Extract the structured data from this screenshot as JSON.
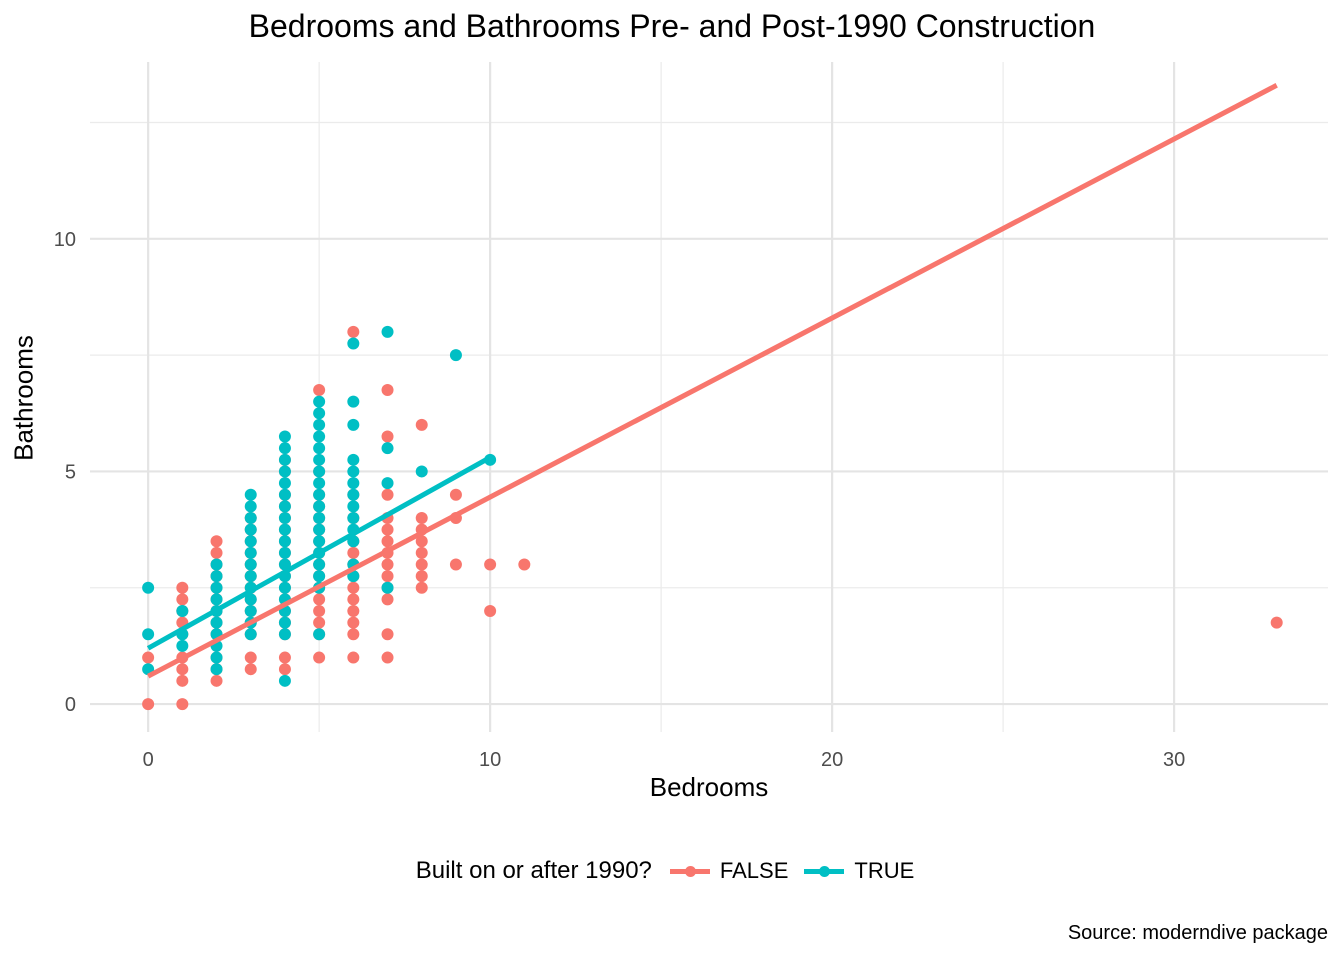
{
  "chart_data": {
    "type": "scatter",
    "title": "Bedrooms and Bathrooms Pre- and Post-1990 Construction",
    "xlabel": "Bedrooms",
    "ylabel": "Bathrooms",
    "caption": "Source: moderndive package",
    "xlim": [
      -1.7,
      34.5
    ],
    "ylim": [
      -0.6,
      13.8
    ],
    "x_ticks": [
      0,
      10,
      20,
      30
    ],
    "y_ticks": [
      0,
      5,
      10
    ],
    "grid": true,
    "legend": {
      "title": "Built on or after 1990?",
      "position": "bottom",
      "entries": [
        "FALSE",
        "TRUE"
      ]
    },
    "colors": {
      "FALSE": "#F8766D",
      "TRUE": "#00BFC4"
    },
    "series": [
      {
        "name": "FALSE",
        "color": "#F8766D",
        "points": [
          [
            0,
            0
          ],
          [
            0,
            1
          ],
          [
            1,
            0
          ],
          [
            1,
            0.5
          ],
          [
            1,
            0.75
          ],
          [
            1,
            1
          ],
          [
            1,
            1.5
          ],
          [
            1,
            1.75
          ],
          [
            1,
            2
          ],
          [
            1,
            2.25
          ],
          [
            1,
            2.5
          ],
          [
            2,
            0.5
          ],
          [
            2,
            0.75
          ],
          [
            2,
            1
          ],
          [
            2,
            1.5
          ],
          [
            2,
            1.75
          ],
          [
            2,
            2
          ],
          [
            2,
            2.25
          ],
          [
            2,
            2.5
          ],
          [
            2,
            2.75
          ],
          [
            2,
            3
          ],
          [
            2,
            3.25
          ],
          [
            2,
            3.5
          ],
          [
            3,
            0.75
          ],
          [
            3,
            1
          ],
          [
            3,
            1.5
          ],
          [
            3,
            1.75
          ],
          [
            3,
            2
          ],
          [
            3,
            2.25
          ],
          [
            3,
            2.5
          ],
          [
            3,
            2.75
          ],
          [
            3,
            3
          ],
          [
            3,
            3.25
          ],
          [
            3,
            3.5
          ],
          [
            3,
            3.75
          ],
          [
            3,
            4
          ],
          [
            4,
            0.75
          ],
          [
            4,
            1
          ],
          [
            4,
            1.5
          ],
          [
            4,
            1.75
          ],
          [
            4,
            2
          ],
          [
            4,
            2.25
          ],
          [
            4,
            2.5
          ],
          [
            4,
            2.75
          ],
          [
            4,
            3
          ],
          [
            4,
            3.25
          ],
          [
            4,
            3.5
          ],
          [
            4,
            3.75
          ],
          [
            4,
            4
          ],
          [
            4,
            4.25
          ],
          [
            4,
            4.5
          ],
          [
            4,
            5
          ],
          [
            4,
            5.25
          ],
          [
            5,
            1
          ],
          [
            5,
            1.5
          ],
          [
            5,
            1.75
          ],
          [
            5,
            2
          ],
          [
            5,
            2.25
          ],
          [
            5,
            2.5
          ],
          [
            5,
            2.75
          ],
          [
            5,
            3
          ],
          [
            5,
            3.25
          ],
          [
            5,
            3.5
          ],
          [
            5,
            3.75
          ],
          [
            5,
            4
          ],
          [
            5,
            4.25
          ],
          [
            5,
            4.5
          ],
          [
            5,
            5
          ],
          [
            5,
            6.75
          ],
          [
            6,
            1
          ],
          [
            6,
            1.5
          ],
          [
            6,
            1.75
          ],
          [
            6,
            2
          ],
          [
            6,
            2.25
          ],
          [
            6,
            2.5
          ],
          [
            6,
            2.75
          ],
          [
            6,
            3
          ],
          [
            6,
            3.25
          ],
          [
            6,
            3.5
          ],
          [
            6,
            4
          ],
          [
            6,
            4.5
          ],
          [
            6,
            8
          ],
          [
            7,
            1
          ],
          [
            7,
            1.5
          ],
          [
            7,
            2.25
          ],
          [
            7,
            2.5
          ],
          [
            7,
            2.75
          ],
          [
            7,
            3
          ],
          [
            7,
            3.25
          ],
          [
            7,
            3.5
          ],
          [
            7,
            3.75
          ],
          [
            7,
            4
          ],
          [
            7,
            4.5
          ],
          [
            7,
            5.75
          ],
          [
            7,
            6.75
          ],
          [
            8,
            2.5
          ],
          [
            8,
            2.75
          ],
          [
            8,
            3
          ],
          [
            8,
            3.25
          ],
          [
            8,
            3.5
          ],
          [
            8,
            3.75
          ],
          [
            8,
            4
          ],
          [
            8,
            6
          ],
          [
            9,
            3
          ],
          [
            9,
            4
          ],
          [
            9,
            4.5
          ],
          [
            10,
            2
          ],
          [
            10,
            3
          ],
          [
            11,
            3
          ],
          [
            33,
            1.75
          ]
        ],
        "fit": {
          "x": [
            0,
            33
          ],
          "y": [
            0.6,
            13.3
          ]
        }
      },
      {
        "name": "TRUE",
        "color": "#00BFC4",
        "points": [
          [
            0,
            0.75
          ],
          [
            0,
            1.5
          ],
          [
            0,
            2.5
          ],
          [
            1,
            1.25
          ],
          [
            1,
            1.5
          ],
          [
            1,
            2
          ],
          [
            2,
            0.75
          ],
          [
            2,
            1
          ],
          [
            2,
            1.25
          ],
          [
            2,
            1.5
          ],
          [
            2,
            1.75
          ],
          [
            2,
            2
          ],
          [
            2,
            2.25
          ],
          [
            2,
            2.5
          ],
          [
            2,
            2.75
          ],
          [
            2,
            3
          ],
          [
            3,
            1.5
          ],
          [
            3,
            1.75
          ],
          [
            3,
            2
          ],
          [
            3,
            2.25
          ],
          [
            3,
            2.5
          ],
          [
            3,
            2.75
          ],
          [
            3,
            3
          ],
          [
            3,
            3.25
          ],
          [
            3,
            3.5
          ],
          [
            3,
            3.75
          ],
          [
            3,
            4
          ],
          [
            3,
            4.25
          ],
          [
            3,
            4.5
          ],
          [
            4,
            0.5
          ],
          [
            4,
            1.5
          ],
          [
            4,
            1.75
          ],
          [
            4,
            2
          ],
          [
            4,
            2.25
          ],
          [
            4,
            2.5
          ],
          [
            4,
            2.75
          ],
          [
            4,
            3
          ],
          [
            4,
            3.25
          ],
          [
            4,
            3.5
          ],
          [
            4,
            3.75
          ],
          [
            4,
            4
          ],
          [
            4,
            4.25
          ],
          [
            4,
            4.5
          ],
          [
            4,
            4.75
          ],
          [
            4,
            5
          ],
          [
            4,
            5.25
          ],
          [
            4,
            5.5
          ],
          [
            4,
            5.75
          ],
          [
            5,
            1.5
          ],
          [
            5,
            2.5
          ],
          [
            5,
            2.75
          ],
          [
            5,
            3
          ],
          [
            5,
            3.25
          ],
          [
            5,
            3.5
          ],
          [
            5,
            3.75
          ],
          [
            5,
            4
          ],
          [
            5,
            4.25
          ],
          [
            5,
            4.5
          ],
          [
            5,
            4.75
          ],
          [
            5,
            5
          ],
          [
            5,
            5.25
          ],
          [
            5,
            5.5
          ],
          [
            5,
            5.75
          ],
          [
            5,
            6
          ],
          [
            5,
            6.25
          ],
          [
            5,
            6.5
          ],
          [
            6,
            2.75
          ],
          [
            6,
            3
          ],
          [
            6,
            3.5
          ],
          [
            6,
            3.75
          ],
          [
            6,
            4
          ],
          [
            6,
            4.25
          ],
          [
            6,
            4.5
          ],
          [
            6,
            4.75
          ],
          [
            6,
            5
          ],
          [
            6,
            5.25
          ],
          [
            6,
            6
          ],
          [
            6,
            6.5
          ],
          [
            6,
            7.75
          ],
          [
            7,
            2.5
          ],
          [
            7,
            4.75
          ],
          [
            7,
            5.5
          ],
          [
            7,
            8
          ],
          [
            8,
            5
          ],
          [
            9,
            7.5
          ],
          [
            10,
            5.25
          ]
        ],
        "fit": {
          "x": [
            0,
            10
          ],
          "y": [
            1.2,
            5.3
          ]
        }
      }
    ]
  }
}
